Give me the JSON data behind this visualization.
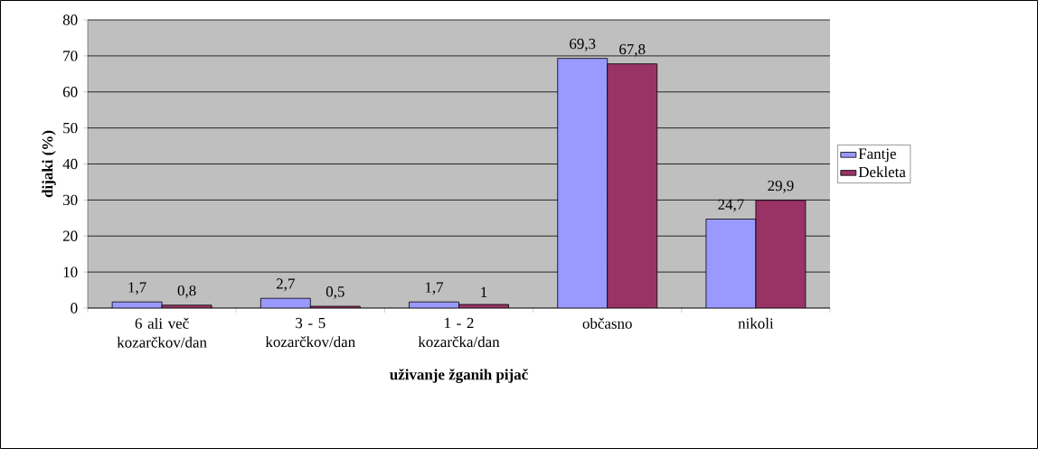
{
  "chart_data": {
    "type": "bar",
    "xlabel": "uživanje žganih pijač",
    "ylabel": "dijaki (%)",
    "categories": [
      "6 ali več kozarčkov/dan",
      "3 - 5 kozarčkov/dan",
      "1 - 2 kozarčka/dan",
      "občasno",
      "nikoli"
    ],
    "series": [
      {
        "name": "Fantje",
        "color": "#9999ff",
        "values": [
          1.7,
          2.7,
          1.7,
          69.3,
          24.7
        ],
        "value_labels": [
          "1,7",
          "2,7",
          "1,7",
          "69,3",
          "24,7"
        ]
      },
      {
        "name": "Dekleta",
        "color": "#993366",
        "values": [
          0.8,
          0.5,
          1,
          67.8,
          29.9
        ],
        "value_labels": [
          "0,8",
          "0,5",
          "1",
          "67,8",
          "29,9"
        ]
      }
    ],
    "ylim": [
      0,
      80
    ],
    "yticks": [
      0,
      10,
      20,
      30,
      40,
      50,
      60,
      70,
      80
    ],
    "grid": "y",
    "legend": "right"
  }
}
